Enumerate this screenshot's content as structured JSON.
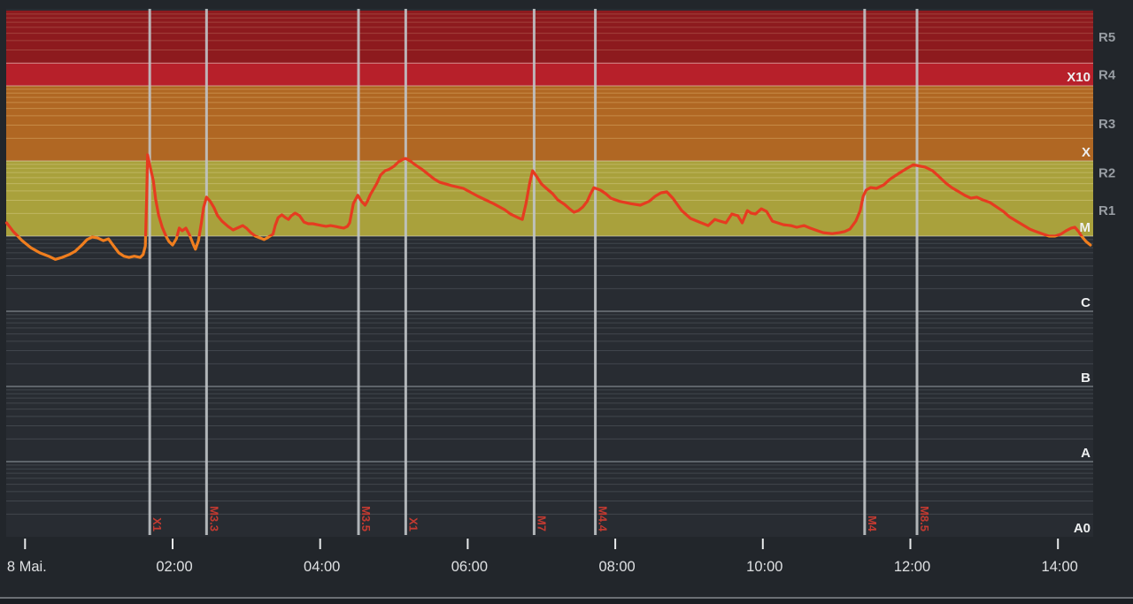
{
  "colors": {
    "page_bg": "#22262b",
    "plot_bg_below_m": "#282c32",
    "band_r5": "#8d1a1e",
    "band_r4": "#b7202a",
    "band_r3": "#b06723",
    "band_r1r2": "#a9a13c",
    "grid_on_r5": "#a2423c",
    "grid_on_r3": "#c58a47",
    "grid_on_r1r2": "#bfb661",
    "grid_dark_minor": "#41464d",
    "grid_dark_major": "#7f858d",
    "decade_line_light": "#e8e6dd",
    "event_line": "#c0c4c7",
    "event_label": "#c23a31",
    "curve_above_m": "#e63b20",
    "curve_below_m": "#f07e1e",
    "tick_label": "#dee0e2",
    "inside_label": "#eef0f1",
    "outside_label": "#989da3",
    "bottom_border": "#6b6f74",
    "footer_bg": "#1b1f24"
  },
  "chart_data": {
    "type": "line",
    "y_axis": {
      "scale": "log",
      "unit": "W/m^2",
      "range": [
        1e-09,
        0.01
      ],
      "levels": [
        {
          "label": "X10",
          "flux": 0.001
        },
        {
          "label": "X",
          "flux": 0.0001
        },
        {
          "label": "M",
          "flux": 1e-05
        },
        {
          "label": "C",
          "flux": 1e-06
        },
        {
          "label": "B",
          "flux": 1e-07
        },
        {
          "label": "A",
          "flux": 1e-08
        },
        {
          "label": "A0",
          "flux": 1e-09
        }
      ]
    },
    "x_axis": {
      "unit": "hours",
      "range_hours": [
        -0.256,
        14.48
      ],
      "ticks": [
        {
          "hour": 0,
          "label": "8 Mai."
        },
        {
          "hour": 2,
          "label": "02:00"
        },
        {
          "hour": 4,
          "label": "04:00"
        },
        {
          "hour": 6,
          "label": "06:00"
        },
        {
          "hour": 8,
          "label": "08:00"
        },
        {
          "hour": 10,
          "label": "10:00"
        },
        {
          "hour": 12,
          "label": "12:00"
        },
        {
          "hour": 14,
          "label": "14:00"
        }
      ]
    },
    "noaa_r_scale_bands": [
      {
        "label": "R5",
        "from_flux": 0.002,
        "to_flux": 0.01,
        "color_key": "band_r5"
      },
      {
        "label": "R4",
        "from_flux": 0.001,
        "to_flux": 0.002,
        "color_key": "band_r4"
      },
      {
        "label": "R3",
        "from_flux": 0.0001,
        "to_flux": 0.001,
        "color_key": "band_r3"
      },
      {
        "label": "R2",
        "from_flux": 5e-05,
        "to_flux": 0.0001,
        "color_key": "band_r1r2"
      },
      {
        "label": "R1",
        "from_flux": 1e-05,
        "to_flux": 5e-05,
        "color_key": "band_r1r2"
      }
    ],
    "flare_events": [
      {
        "label": "X1",
        "hour": 1.69
      },
      {
        "label": "M3.3",
        "hour": 2.46
      },
      {
        "label": "M3.5",
        "hour": 4.52
      },
      {
        "label": "X1",
        "hour": 5.16
      },
      {
        "label": "M7",
        "hour": 6.9
      },
      {
        "label": "M4.4",
        "hour": 7.73
      },
      {
        "label": "M4",
        "hour": 11.38
      },
      {
        "label": "M8.5",
        "hour": 12.09
      }
    ],
    "series": [
      {
        "name": "xray_flux",
        "points": [
          [
            -0.25,
            1.5e-05
          ],
          [
            -0.16,
            1.15e-05
          ],
          [
            -0.04,
            8.7e-06
          ],
          [
            0.08,
            7e-06
          ],
          [
            0.2,
            6e-06
          ],
          [
            0.32,
            5.4e-06
          ],
          [
            0.41,
            4.9e-06
          ],
          [
            0.5,
            5.2e-06
          ],
          [
            0.6,
            5.7e-06
          ],
          [
            0.68,
            6.3e-06
          ],
          [
            0.77,
            7.6e-06
          ],
          [
            0.84,
            9e-06
          ],
          [
            0.91,
            9.7e-06
          ],
          [
            0.98,
            9.5e-06
          ],
          [
            1.06,
            8.7e-06
          ],
          [
            1.13,
            9.2e-06
          ],
          [
            1.2,
            7.4e-06
          ],
          [
            1.27,
            6e-06
          ],
          [
            1.34,
            5.4e-06
          ],
          [
            1.41,
            5.2e-06
          ],
          [
            1.48,
            5.4e-06
          ],
          [
            1.56,
            5.2e-06
          ],
          [
            1.6,
            5.7e-06
          ],
          [
            1.63,
            7.4e-06
          ],
          [
            1.65,
            3.6e-05
          ],
          [
            1.66,
            0.000121
          ],
          [
            1.7,
            8e-05
          ],
          [
            1.74,
            5.4e-05
          ],
          [
            1.77,
            3.1e-05
          ],
          [
            1.81,
            1.9e-05
          ],
          [
            1.86,
            1.31e-05
          ],
          [
            1.91,
            1e-05
          ],
          [
            1.95,
            8.5e-06
          ],
          [
            2.0,
            7.6e-06
          ],
          [
            2.05,
            9.2e-06
          ],
          [
            2.09,
            1.28e-05
          ],
          [
            2.13,
            1.18e-05
          ],
          [
            2.18,
            1.28e-05
          ],
          [
            2.23,
            1.03e-05
          ],
          [
            2.28,
            7.8e-06
          ],
          [
            2.31,
            6.7e-06
          ],
          [
            2.35,
            8.7e-06
          ],
          [
            2.39,
            1.5e-05
          ],
          [
            2.42,
            2.4e-05
          ],
          [
            2.46,
            3.3e-05
          ],
          [
            2.51,
            2.9e-05
          ],
          [
            2.56,
            2.4e-05
          ],
          [
            2.61,
            1.87e-05
          ],
          [
            2.67,
            1.58e-05
          ],
          [
            2.75,
            1.35e-05
          ],
          [
            2.82,
            1.21e-05
          ],
          [
            2.9,
            1.31e-05
          ],
          [
            2.95,
            1.38e-05
          ],
          [
            3.0,
            1.28e-05
          ],
          [
            3.06,
            1.11e-05
          ],
          [
            3.12,
            1e-05
          ],
          [
            3.18,
            9.5e-06
          ],
          [
            3.24,
            9e-06
          ],
          [
            3.3,
            9.7e-06
          ],
          [
            3.36,
            1.06e-05
          ],
          [
            3.39,
            1.38e-05
          ],
          [
            3.43,
            1.76e-05
          ],
          [
            3.48,
            1.92e-05
          ],
          [
            3.53,
            1.76e-05
          ],
          [
            3.57,
            1.67e-05
          ],
          [
            3.61,
            1.87e-05
          ],
          [
            3.66,
            2.02e-05
          ],
          [
            3.72,
            1.87e-05
          ],
          [
            3.78,
            1.54e-05
          ],
          [
            3.84,
            1.46e-05
          ],
          [
            3.9,
            1.46e-05
          ],
          [
            3.96,
            1.42e-05
          ],
          [
            4.02,
            1.38e-05
          ],
          [
            4.08,
            1.35e-05
          ],
          [
            4.14,
            1.38e-05
          ],
          [
            4.2,
            1.35e-05
          ],
          [
            4.26,
            1.31e-05
          ],
          [
            4.32,
            1.28e-05
          ],
          [
            4.37,
            1.35e-05
          ],
          [
            4.4,
            1.5e-05
          ],
          [
            4.45,
            2.7e-05
          ],
          [
            4.51,
            3.5e-05
          ],
          [
            4.56,
            2.9e-05
          ],
          [
            4.61,
            2.58e-05
          ],
          [
            4.64,
            2.9e-05
          ],
          [
            4.68,
            3.57e-05
          ],
          [
            4.73,
            4.32e-05
          ],
          [
            4.77,
            5.08e-05
          ],
          [
            4.82,
            6.5e-05
          ],
          [
            4.88,
            7.4e-05
          ],
          [
            4.94,
            7.8e-05
          ],
          [
            5.0,
            8.5e-05
          ],
          [
            5.06,
            9.7e-05
          ],
          [
            5.12,
            0.000105
          ],
          [
            5.16,
            0.000108
          ],
          [
            5.22,
            0.0001
          ],
          [
            5.3,
            8.7e-05
          ],
          [
            5.39,
            7.6e-05
          ],
          [
            5.46,
            6.7e-05
          ],
          [
            5.54,
            5.8e-05
          ],
          [
            5.62,
            5.2e-05
          ],
          [
            5.78,
            4.7e-05
          ],
          [
            5.94,
            4.32e-05
          ],
          [
            6.14,
            3.38e-05
          ],
          [
            6.35,
            2.7e-05
          ],
          [
            6.5,
            2.25e-05
          ],
          [
            6.58,
            1.97e-05
          ],
          [
            6.68,
            1.76e-05
          ],
          [
            6.74,
            1.67e-05
          ],
          [
            6.79,
            2.7e-05
          ],
          [
            6.84,
            5.08e-05
          ],
          [
            6.88,
            7.4e-05
          ],
          [
            6.94,
            6.1e-05
          ],
          [
            7.0,
            4.94e-05
          ],
          [
            7.08,
            4.2e-05
          ],
          [
            7.15,
            3.67e-05
          ],
          [
            7.22,
            3.04e-05
          ],
          [
            7.31,
            2.65e-05
          ],
          [
            7.38,
            2.31e-05
          ],
          [
            7.44,
            2.08e-05
          ],
          [
            7.5,
            2.19e-05
          ],
          [
            7.56,
            2.44e-05
          ],
          [
            7.62,
            2.9e-05
          ],
          [
            7.66,
            3.57e-05
          ],
          [
            7.71,
            4.4e-05
          ],
          [
            7.8,
            4.09e-05
          ],
          [
            7.87,
            3.67e-05
          ],
          [
            7.94,
            3.2e-05
          ],
          [
            8.06,
            2.9e-05
          ],
          [
            8.21,
            2.7e-05
          ],
          [
            8.34,
            2.58e-05
          ],
          [
            8.46,
            2.9e-05
          ],
          [
            8.54,
            3.38e-05
          ],
          [
            8.62,
            3.77e-05
          ],
          [
            8.7,
            3.87e-05
          ],
          [
            8.78,
            3.2e-05
          ],
          [
            8.9,
            2.19e-05
          ],
          [
            9.02,
            1.72e-05
          ],
          [
            9.14,
            1.54e-05
          ],
          [
            9.26,
            1.38e-05
          ],
          [
            9.35,
            1.67e-05
          ],
          [
            9.42,
            1.58e-05
          ],
          [
            9.5,
            1.5e-05
          ],
          [
            9.58,
            1.97e-05
          ],
          [
            9.66,
            1.87e-05
          ],
          [
            9.72,
            1.5e-05
          ],
          [
            9.79,
            2.19e-05
          ],
          [
            9.84,
            2.02e-05
          ],
          [
            9.9,
            1.97e-05
          ],
          [
            9.98,
            2.31e-05
          ],
          [
            10.05,
            2.13e-05
          ],
          [
            10.13,
            1.58e-05
          ],
          [
            10.2,
            1.5e-05
          ],
          [
            10.28,
            1.42e-05
          ],
          [
            10.38,
            1.38e-05
          ],
          [
            10.46,
            1.31e-05
          ],
          [
            10.56,
            1.38e-05
          ],
          [
            10.64,
            1.28e-05
          ],
          [
            10.74,
            1.18e-05
          ],
          [
            10.82,
            1.11e-05
          ],
          [
            10.94,
            1.08e-05
          ],
          [
            11.04,
            1.11e-05
          ],
          [
            11.11,
            1.15e-05
          ],
          [
            11.18,
            1.24e-05
          ],
          [
            11.26,
            1.58e-05
          ],
          [
            11.32,
            2.19e-05
          ],
          [
            11.36,
            3.38e-05
          ],
          [
            11.4,
            4.09e-05
          ],
          [
            11.46,
            4.43e-05
          ],
          [
            11.54,
            4.32e-05
          ],
          [
            11.64,
            4.81e-05
          ],
          [
            11.72,
            5.7e-05
          ],
          [
            11.81,
            6.5e-05
          ],
          [
            11.88,
            7.2e-05
          ],
          [
            11.96,
            8.05e-05
          ],
          [
            12.04,
            8.9e-05
          ],
          [
            12.14,
            8.5e-05
          ],
          [
            12.2,
            8.3e-05
          ],
          [
            12.3,
            7.4e-05
          ],
          [
            12.38,
            6.3e-05
          ],
          [
            12.48,
            5.08e-05
          ],
          [
            12.56,
            4.43e-05
          ],
          [
            12.64,
            3.98e-05
          ],
          [
            12.74,
            3.48e-05
          ],
          [
            12.82,
            3.2e-05
          ],
          [
            12.9,
            3.3e-05
          ],
          [
            12.98,
            3.04e-05
          ],
          [
            13.08,
            2.8e-05
          ],
          [
            13.17,
            2.44e-05
          ],
          [
            13.26,
            2.13e-05
          ],
          [
            13.34,
            1.81e-05
          ],
          [
            13.44,
            1.58e-05
          ],
          [
            13.52,
            1.42e-05
          ],
          [
            13.62,
            1.24e-05
          ],
          [
            13.7,
            1.15e-05
          ],
          [
            13.8,
            1.06e-05
          ],
          [
            13.88,
            1e-05
          ],
          [
            13.96,
            1e-05
          ],
          [
            14.04,
            1.06e-05
          ],
          [
            14.11,
            1.18e-05
          ],
          [
            14.18,
            1.28e-05
          ],
          [
            14.23,
            1.31e-05
          ],
          [
            14.28,
            1.15e-05
          ],
          [
            14.32,
            1e-05
          ],
          [
            14.38,
            8.5e-06
          ],
          [
            14.44,
            7.6e-06
          ]
        ]
      }
    ]
  }
}
